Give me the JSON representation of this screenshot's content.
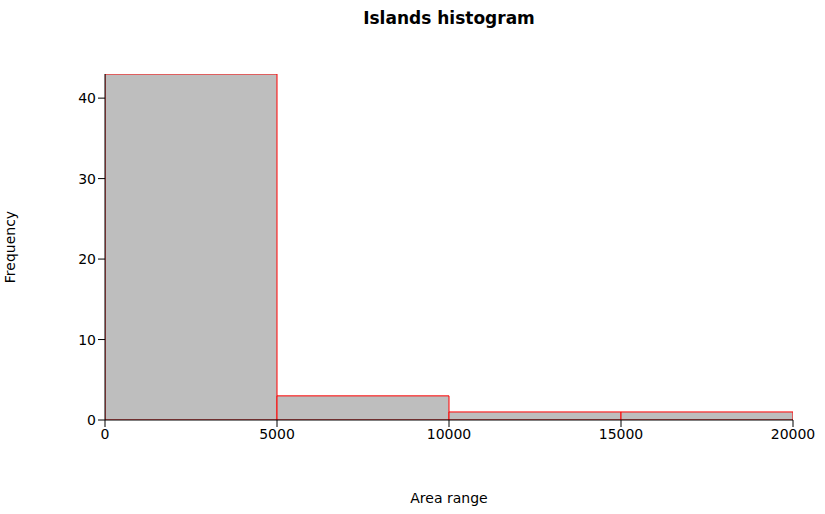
{
  "chart_data": {
    "type": "histogram",
    "title": "Islands histogram",
    "x_label": "Area range",
    "y_label": "Frequency",
    "bins": [
      0,
      5000,
      10000,
      15000,
      20000
    ],
    "counts": [
      43,
      3,
      1,
      1
    ],
    "color": "#bebebe",
    "xlim": [
      0,
      20000
    ],
    "xticks": [
      0,
      5000,
      10000,
      15000,
      20000
    ],
    "ylim": [
      0,
      43
    ],
    "yticks": [
      0,
      10,
      20,
      30,
      40
    ],
    "grid": false
  }
}
